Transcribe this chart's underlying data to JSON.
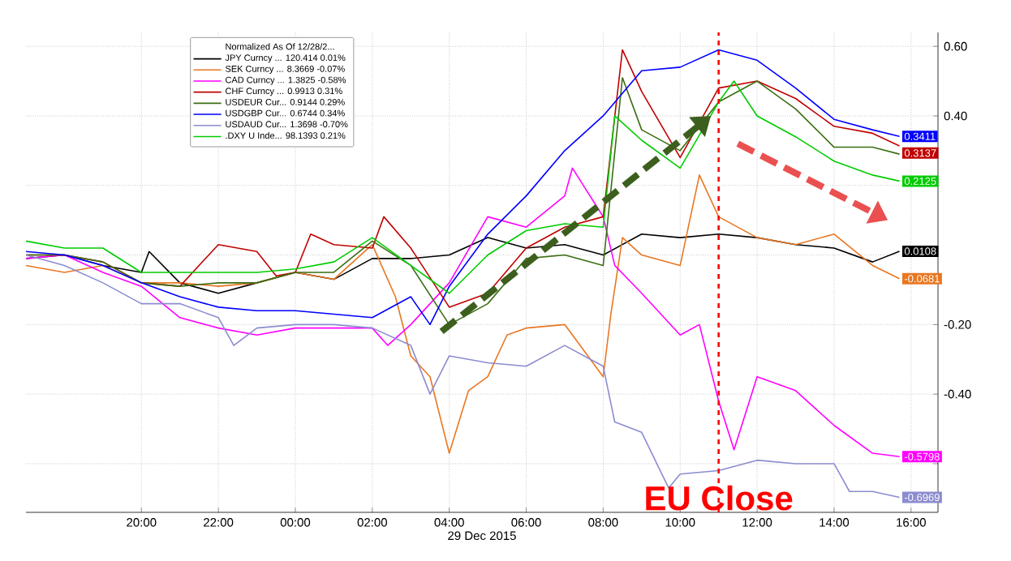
{
  "chart_data": {
    "type": "line",
    "xlabel": "29 Dec 2015",
    "legend_title": "Normalized As Of 12/28/2...",
    "xlim": [
      "2015-12-28T17:00",
      "2015-12-29T16:42"
    ],
    "ylim": [
      -0.74,
      0.64
    ],
    "xticks": [
      {
        "value": "2015-12-28T20:00",
        "label": "20:00"
      },
      {
        "value": "2015-12-28T22:00",
        "label": "22:00"
      },
      {
        "value": "2015-12-29T00:00",
        "label": "00:00"
      },
      {
        "value": "2015-12-29T02:00",
        "label": "02:00"
      },
      {
        "value": "2015-12-29T04:00",
        "label": "04:00"
      },
      {
        "value": "2015-12-29T06:00",
        "label": "06:00"
      },
      {
        "value": "2015-12-29T08:00",
        "label": "08:00"
      },
      {
        "value": "2015-12-29T10:00",
        "label": "10:00"
      },
      {
        "value": "2015-12-29T12:00",
        "label": "12:00"
      },
      {
        "value": "2015-12-29T14:00",
        "label": "14:00"
      },
      {
        "value": "2015-12-29T16:00",
        "label": "16:00"
      }
    ],
    "yticks": [
      {
        "value": 0.6,
        "label": "0.60"
      },
      {
        "value": 0.4,
        "label": "0.40"
      },
      {
        "value": 0.2,
        "label": null
      },
      {
        "value": 0,
        "label": null
      },
      {
        "value": -0.2,
        "label": "-0.20"
      },
      {
        "value": -0.4,
        "label": "-0.40"
      },
      {
        "value": -0.6,
        "label": null
      }
    ],
    "grid": true,
    "legend": "top left",
    "marker": "none",
    "line_style": "solid",
    "ref_lines": [
      {
        "axis": "x",
        "value": "2015-12-29T11:00",
        "label": "EU Close",
        "color": "#ff0000",
        "line_style": "dashed"
      }
    ],
    "series": [
      {
        "name": "JPY Curncy ... 120.414 0.01%",
        "color": "#000000",
        "x": [
          "2015-12-28T17:00",
          "2015-12-28T18:00",
          "2015-12-28T19:00",
          "2015-12-28T20:00",
          "2015-12-28T20:12",
          "2015-12-28T21:00",
          "2015-12-28T22:00",
          "2015-12-28T23:00",
          "2015-12-29T00:00",
          "2015-12-29T01:00",
          "2015-12-29T02:00",
          "2015-12-29T03:00",
          "2015-12-29T04:00",
          "2015-12-29T05:00",
          "2015-12-29T06:00",
          "2015-12-29T07:00",
          "2015-12-29T08:00",
          "2015-12-29T09:00",
          "2015-12-29T10:00",
          "2015-12-29T11:00",
          "2015-12-29T12:00",
          "2015-12-29T13:00",
          "2015-12-29T14:00",
          "2015-12-29T15:00",
          "2015-12-29T15:42"
        ],
        "values": [
          -0.01,
          0,
          -0.03,
          -0.05,
          0.01,
          -0.08,
          -0.11,
          -0.08,
          -0.05,
          -0.07,
          -0.01,
          -0.01,
          0,
          0.05,
          0.02,
          0.03,
          0,
          0.06,
          0.05,
          0.06,
          0.05,
          0.03,
          0.02,
          -0.02,
          0.0108
        ],
        "value_labels": [
          null,
          null,
          null,
          null,
          null,
          null,
          null,
          null,
          null,
          null,
          null,
          null,
          null,
          null,
          null,
          null,
          null,
          null,
          null,
          null,
          null,
          null,
          null,
          null,
          "0.0108"
        ]
      },
      {
        "name": "SEK Curncy ... 8.3669 -0.07%",
        "color": "#e87722",
        "x": [
          "2015-12-28T17:00",
          "2015-12-28T18:00",
          "2015-12-28T19:00",
          "2015-12-28T20:00",
          "2015-12-28T21:00",
          "2015-12-28T22:00",
          "2015-12-28T23:00",
          "2015-12-29T00:00",
          "2015-12-29T01:00",
          "2015-12-29T02:00",
          "2015-12-29T02:36",
          "2015-12-29T03:00",
          "2015-12-29T03:30",
          "2015-12-29T04:00",
          "2015-12-29T04:30",
          "2015-12-29T05:00",
          "2015-12-29T05:30",
          "2015-12-29T06:00",
          "2015-12-29T07:00",
          "2015-12-29T08:00",
          "2015-12-29T08:12",
          "2015-12-29T08:30",
          "2015-12-29T09:00",
          "2015-12-29T10:00",
          "2015-12-29T10:30",
          "2015-12-29T11:00",
          "2015-12-29T12:00",
          "2015-12-29T13:00",
          "2015-12-29T14:00",
          "2015-12-29T15:00",
          "2015-12-29T15:42"
        ],
        "values": [
          -0.03,
          -0.05,
          -0.03,
          -0.08,
          -0.08,
          -0.09,
          -0.08,
          -0.05,
          -0.07,
          0.03,
          -0.12,
          -0.29,
          -0.35,
          -0.57,
          -0.39,
          -0.35,
          -0.23,
          -0.21,
          -0.2,
          -0.35,
          -0.17,
          0.05,
          0,
          -0.03,
          0.23,
          0.11,
          0.05,
          0.03,
          0.06,
          -0.03,
          -0.0681
        ],
        "value_labels": [
          null,
          null,
          null,
          null,
          null,
          null,
          null,
          null,
          null,
          null,
          null,
          null,
          null,
          null,
          null,
          null,
          null,
          null,
          null,
          null,
          null,
          null,
          null,
          null,
          null,
          null,
          null,
          null,
          null,
          null,
          "-0.0681"
        ]
      },
      {
        "name": "CAD Curncy ... 1.3825 -0.58%",
        "color": "#ff00ff",
        "x": [
          "2015-12-28T17:00",
          "2015-12-28T18:00",
          "2015-12-28T19:00",
          "2015-12-28T20:00",
          "2015-12-28T21:00",
          "2015-12-28T22:00",
          "2015-12-28T23:00",
          "2015-12-29T00:00",
          "2015-12-29T01:00",
          "2015-12-29T02:00",
          "2015-12-29T02:24",
          "2015-12-29T03:00",
          "2015-12-29T04:00",
          "2015-12-29T05:00",
          "2015-12-29T06:00",
          "2015-12-29T07:00",
          "2015-12-29T07:12",
          "2015-12-29T08:00",
          "2015-12-29T08:18",
          "2015-12-29T09:00",
          "2015-12-29T10:00",
          "2015-12-29T10:30",
          "2015-12-29T11:00",
          "2015-12-29T11:24",
          "2015-12-29T12:00",
          "2015-12-29T13:00",
          "2015-12-29T14:00",
          "2015-12-29T15:00",
          "2015-12-29T15:42"
        ],
        "values": [
          -0.01,
          0,
          -0.05,
          -0.09,
          -0.18,
          -0.21,
          -0.23,
          -0.21,
          -0.21,
          -0.21,
          -0.26,
          -0.2,
          -0.08,
          0.11,
          0.08,
          0.17,
          0.25,
          0.11,
          -0.03,
          -0.11,
          -0.23,
          -0.2,
          -0.42,
          -0.56,
          -0.35,
          -0.39,
          -0.49,
          -0.57,
          -0.5798
        ],
        "value_labels": [
          null,
          null,
          null,
          null,
          null,
          null,
          null,
          null,
          null,
          null,
          null,
          null,
          null,
          null,
          null,
          null,
          null,
          null,
          null,
          null,
          null,
          null,
          null,
          null,
          null,
          null,
          null,
          null,
          "-0.5798"
        ]
      },
      {
        "name": "CHF Curncy ... 0.9913 0.31%",
        "color": "#c00000",
        "x": [
          "2015-12-28T17:00",
          "2015-12-28T18:00",
          "2015-12-28T19:00",
          "2015-12-28T20:00",
          "2015-12-28T21:00",
          "2015-12-28T22:00",
          "2015-12-28T23:00",
          "2015-12-28T23:30",
          "2015-12-29T00:00",
          "2015-12-29T00:24",
          "2015-12-29T01:00",
          "2015-12-29T02:00",
          "2015-12-29T02:18",
          "2015-12-29T03:00",
          "2015-12-29T04:00",
          "2015-12-29T05:00",
          "2015-12-29T06:00",
          "2015-12-29T07:00",
          "2015-12-29T08:00",
          "2015-12-29T08:30",
          "2015-12-29T09:00",
          "2015-12-29T10:00",
          "2015-12-29T11:00",
          "2015-12-29T12:00",
          "2015-12-29T13:00",
          "2015-12-29T14:00",
          "2015-12-29T15:00",
          "2015-12-29T15:42"
        ],
        "values": [
          0,
          0,
          -0.02,
          -0.08,
          -0.09,
          0.03,
          0.01,
          -0.06,
          -0.05,
          0.06,
          0.03,
          0.02,
          0.11,
          0.02,
          -0.15,
          -0.11,
          0.02,
          0.08,
          0.11,
          0.59,
          0.47,
          0.28,
          0.48,
          0.5,
          0.45,
          0.37,
          0.35,
          0.3137
        ],
        "value_labels": [
          null,
          null,
          null,
          null,
          null,
          null,
          null,
          null,
          null,
          null,
          null,
          null,
          null,
          null,
          null,
          null,
          null,
          null,
          null,
          null,
          null,
          null,
          null,
          null,
          null,
          null,
          null,
          "0.3137"
        ]
      },
      {
        "name": "USDEUR Cur... 0.9144 0.29%",
        "color": "#3a6e12",
        "x": [
          "2015-12-28T17:00",
          "2015-12-28T18:00",
          "2015-12-28T19:00",
          "2015-12-28T20:00",
          "2015-12-28T21:00",
          "2015-12-28T22:00",
          "2015-12-28T23:00",
          "2015-12-29T00:00",
          "2015-12-29T01:00",
          "2015-12-29T02:00",
          "2015-12-29T03:00",
          "2015-12-29T04:00",
          "2015-12-29T05:00",
          "2015-12-29T06:00",
          "2015-12-29T07:00",
          "2015-12-29T08:00",
          "2015-12-29T08:30",
          "2015-12-29T09:00",
          "2015-12-29T10:00",
          "2015-12-29T11:00",
          "2015-12-29T12:00",
          "2015-12-29T13:00",
          "2015-12-29T14:00",
          "2015-12-29T15:00",
          "2015-12-29T15:42"
        ],
        "values": [
          0,
          0,
          -0.02,
          -0.08,
          -0.09,
          -0.08,
          -0.08,
          -0.05,
          -0.05,
          0.04,
          -0.03,
          -0.2,
          -0.14,
          -0.01,
          0,
          -0.03,
          0.51,
          0.36,
          0.3,
          0.44,
          0.5,
          0.42,
          0.31,
          0.31,
          0.29
        ]
      },
      {
        "name": "USDGBP Cur... 0.6744 0.34%",
        "color": "#0000ff",
        "x": [
          "2015-12-28T17:00",
          "2015-12-28T18:00",
          "2015-12-28T19:00",
          "2015-12-28T20:00",
          "2015-12-28T21:00",
          "2015-12-28T22:00",
          "2015-12-28T23:00",
          "2015-12-29T00:00",
          "2015-12-29T01:00",
          "2015-12-29T02:00",
          "2015-12-29T03:00",
          "2015-12-29T03:30",
          "2015-12-29T04:00",
          "2015-12-29T05:00",
          "2015-12-29T06:00",
          "2015-12-29T07:00",
          "2015-12-29T08:00",
          "2015-12-29T09:00",
          "2015-12-29T10:00",
          "2015-12-29T11:00",
          "2015-12-29T12:00",
          "2015-12-29T13:00",
          "2015-12-29T14:00",
          "2015-12-29T15:00",
          "2015-12-29T15:42"
        ],
        "values": [
          0.01,
          0,
          -0.03,
          -0.08,
          -0.12,
          -0.15,
          -0.16,
          -0.16,
          -0.17,
          -0.18,
          -0.12,
          -0.2,
          -0.09,
          0.06,
          0.17,
          0.3,
          0.4,
          0.53,
          0.54,
          0.59,
          0.56,
          0.48,
          0.39,
          0.36,
          0.3411
        ],
        "value_labels": [
          null,
          null,
          null,
          null,
          null,
          null,
          null,
          null,
          null,
          null,
          null,
          null,
          null,
          null,
          null,
          null,
          null,
          null,
          null,
          null,
          null,
          null,
          null,
          null,
          "0.3411"
        ]
      },
      {
        "name": "USDAUD Cur... 1.3698 -0.70%",
        "color": "#8c8cd0",
        "x": [
          "2015-12-28T17:00",
          "2015-12-28T18:00",
          "2015-12-28T19:00",
          "2015-12-28T20:00",
          "2015-12-28T21:00",
          "2015-12-28T22:00",
          "2015-12-28T22:24",
          "2015-12-28T23:00",
          "2015-12-29T00:00",
          "2015-12-29T01:00",
          "2015-12-29T02:00",
          "2015-12-29T03:00",
          "2015-12-29T03:30",
          "2015-12-29T04:00",
          "2015-12-29T05:00",
          "2015-12-29T06:00",
          "2015-12-29T07:00",
          "2015-12-29T08:00",
          "2015-12-29T08:18",
          "2015-12-29T09:00",
          "2015-12-29T09:42",
          "2015-12-29T10:00",
          "2015-12-29T11:00",
          "2015-12-29T12:00",
          "2015-12-29T13:00",
          "2015-12-29T14:00",
          "2015-12-29T14:24",
          "2015-12-29T15:00",
          "2015-12-29T15:42"
        ],
        "values": [
          0,
          -0.03,
          -0.08,
          -0.14,
          -0.14,
          -0.18,
          -0.26,
          -0.21,
          -0.2,
          -0.2,
          -0.21,
          -0.26,
          -0.4,
          -0.29,
          -0.31,
          -0.32,
          -0.26,
          -0.32,
          -0.48,
          -0.51,
          -0.67,
          -0.63,
          -0.62,
          -0.59,
          -0.6,
          -0.6,
          -0.68,
          -0.68,
          -0.6969
        ],
        "value_labels": [
          null,
          null,
          null,
          null,
          null,
          null,
          null,
          null,
          null,
          null,
          null,
          null,
          null,
          null,
          null,
          null,
          null,
          null,
          null,
          null,
          null,
          null,
          null,
          null,
          null,
          null,
          null,
          null,
          "-0.6969"
        ]
      },
      {
        "name": ".DXY U Inde... 98.1393 0.21%",
        "color": "#00cc00",
        "x": [
          "2015-12-28T17:00",
          "2015-12-28T18:00",
          "2015-12-28T19:00",
          "2015-12-28T20:00",
          "2015-12-28T21:00",
          "2015-12-28T22:00",
          "2015-12-28T23:00",
          "2015-12-29T00:00",
          "2015-12-29T01:00",
          "2015-12-29T02:00",
          "2015-12-29T03:00",
          "2015-12-29T04:00",
          "2015-12-29T05:00",
          "2015-12-29T06:00",
          "2015-12-29T07:00",
          "2015-12-29T08:00",
          "2015-12-29T08:18",
          "2015-12-29T09:00",
          "2015-12-29T10:00",
          "2015-12-29T11:00",
          "2015-12-29T11:24",
          "2015-12-29T12:00",
          "2015-12-29T13:00",
          "2015-12-29T14:00",
          "2015-12-29T15:00",
          "2015-12-29T15:42"
        ],
        "values": [
          0.04,
          0.02,
          0.02,
          -0.05,
          -0.05,
          -0.05,
          -0.05,
          -0.04,
          -0.02,
          0.05,
          -0.03,
          -0.11,
          0,
          0.07,
          0.09,
          0.08,
          0.4,
          0.33,
          0.25,
          0.44,
          0.5,
          0.4,
          0.34,
          0.27,
          0.23,
          0.2125
        ],
        "value_labels": [
          null,
          null,
          null,
          null,
          null,
          null,
          null,
          null,
          null,
          null,
          null,
          null,
          null,
          null,
          null,
          null,
          null,
          null,
          null,
          null,
          null,
          null,
          null,
          null,
          null,
          "0.2125"
        ]
      }
    ]
  }
}
